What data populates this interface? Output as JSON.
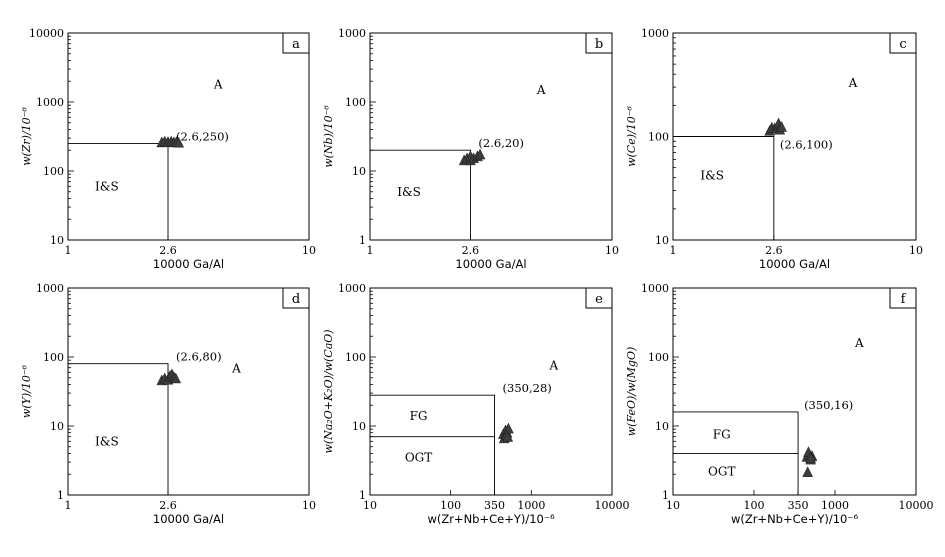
{
  "chart_data": [
    {
      "type": "scatter",
      "panel": "a",
      "xlabel": "10000 Ga/Al",
      "ylabel": "w(Zr)/10⁻⁶",
      "xscale": "log",
      "yscale": "log",
      "xlim": [
        1,
        10
      ],
      "ylim": [
        10,
        10000
      ],
      "xticks": [
        "1",
        "2.6",
        "10"
      ],
      "yticks": [
        "10",
        "100",
        "1000",
        "10000"
      ],
      "boundary": {
        "x": 2.6,
        "y": 250
      },
      "annotation": "(2.6,250)",
      "fields": [
        {
          "label": "A",
          "x": 4.2,
          "y": 1800
        },
        {
          "label": "I&S",
          "x": 1.45,
          "y": 60
        }
      ],
      "points": [
        [
          2.45,
          255
        ],
        [
          2.52,
          262
        ],
        [
          2.6,
          258
        ],
        [
          2.68,
          262
        ],
        [
          2.75,
          255
        ],
        [
          2.82,
          258
        ],
        [
          2.88,
          252
        ]
      ]
    },
    {
      "type": "scatter",
      "panel": "b",
      "xlabel": "10000 Ga/Al",
      "ylabel": "w(Nb)/10⁻⁶",
      "xscale": "log",
      "yscale": "log",
      "xlim": [
        1,
        10
      ],
      "ylim": [
        1,
        1000
      ],
      "xticks": [
        "1",
        "2.6",
        "10"
      ],
      "yticks": [
        "1",
        "10",
        "100",
        "1000"
      ],
      "boundary": {
        "x": 2.6,
        "y": 20
      },
      "annotation": "(2.6,20)",
      "fields": [
        {
          "label": "A",
          "x": 5.1,
          "y": 150
        },
        {
          "label": "I&S",
          "x": 1.45,
          "y": 5
        }
      ],
      "points": [
        [
          2.45,
          14
        ],
        [
          2.52,
          15
        ],
        [
          2.6,
          14
        ],
        [
          2.6,
          16
        ],
        [
          2.68,
          15
        ],
        [
          2.78,
          16
        ],
        [
          2.85,
          17
        ]
      ]
    },
    {
      "type": "scatter",
      "panel": "c",
      "xlabel": "10000 Ga/Al",
      "ylabel": "w(Ce)/10⁻⁶",
      "xscale": "log",
      "yscale": "log",
      "xlim": [
        1,
        10
      ],
      "ylim": [
        10,
        1000
      ],
      "xticks": [
        "1",
        "2.6",
        "10"
      ],
      "yticks": [
        "10",
        "100",
        "1000"
      ],
      "boundary": {
        "x": 2.6,
        "y": 100
      },
      "annotation": "(2.6,100)",
      "fields": [
        {
          "label": "A",
          "x": 5.5,
          "y": 330
        },
        {
          "label": "I&S",
          "x": 1.45,
          "y": 42
        }
      ],
      "points": [
        [
          2.5,
          112
        ],
        [
          2.55,
          120
        ],
        [
          2.62,
          118
        ],
        [
          2.7,
          125
        ],
        [
          2.72,
          132
        ],
        [
          2.75,
          115
        ],
        [
          2.8,
          122
        ]
      ]
    },
    {
      "type": "scatter",
      "panel": "d",
      "xlabel": "10000 Ga/Al",
      "ylabel": "w(Y)/10⁻⁶",
      "xscale": "log",
      "yscale": "log",
      "xlim": [
        1,
        10
      ],
      "ylim": [
        1,
        1000
      ],
      "xticks": [
        "1",
        "2.6",
        "10"
      ],
      "yticks": [
        "1",
        "10",
        "100",
        "1000"
      ],
      "boundary": {
        "x": 2.6,
        "y": 80
      },
      "annotation": "(2.6,80)",
      "fields": [
        {
          "label": "A",
          "x": 5.0,
          "y": 68
        },
        {
          "label": "I&S",
          "x": 1.45,
          "y": 6
        }
      ],
      "points": [
        [
          2.45,
          45
        ],
        [
          2.52,
          48
        ],
        [
          2.6,
          46
        ],
        [
          2.65,
          52
        ],
        [
          2.7,
          55
        ],
        [
          2.75,
          50
        ],
        [
          2.8,
          48
        ]
      ]
    },
    {
      "type": "scatter",
      "panel": "e",
      "xlabel": "w(Zr+Nb+Ce+Y)/10⁻⁶",
      "ylabel": "w(Na₂O+K₂O)/w(CaO)",
      "xscale": "log",
      "yscale": "log",
      "xlim": [
        10,
        10000
      ],
      "ylim": [
        1,
        1000
      ],
      "xticks": [
        "10",
        "100",
        "350",
        "1000",
        "10000"
      ],
      "yticks": [
        "1",
        "10",
        "100",
        "1000"
      ],
      "boundary": {
        "x": 350,
        "y": 28
      },
      "inner_boundary": {
        "x": 350,
        "y": 7
      },
      "annotation": "(350,28)",
      "fields": [
        {
          "label": "A",
          "x": 1900,
          "y": 75
        },
        {
          "label": "FG",
          "x": 40,
          "y": 14
        },
        {
          "label": "OGT",
          "x": 40,
          "y": 3.5
        }
      ],
      "points": [
        [
          450,
          7.5
        ],
        [
          480,
          8.5
        ],
        [
          500,
          7.8
        ],
        [
          520,
          9
        ],
        [
          460,
          6.5
        ],
        [
          490,
          7.2
        ],
        [
          510,
          6.8
        ]
      ]
    },
    {
      "type": "scatter",
      "panel": "f",
      "xlabel": "w(Zr+Nb+Ce+Y)/10⁻⁶",
      "ylabel": "w(FeO)/w(MgO)",
      "xscale": "log",
      "yscale": "log",
      "xlim": [
        10,
        10000
      ],
      "ylim": [
        1,
        1000
      ],
      "xticks": [
        "10",
        "100",
        "350",
        "1000",
        "10000"
      ],
      "yticks": [
        "1",
        "10",
        "100",
        "1000"
      ],
      "boundary": {
        "x": 350,
        "y": 16
      },
      "inner_boundary": {
        "x": 350,
        "y": 4
      },
      "annotation": "(350,16)",
      "fields": [
        {
          "label": "A",
          "x": 2000,
          "y": 160
        },
        {
          "label": "FG",
          "x": 40,
          "y": 7.5
        },
        {
          "label": "OGT",
          "x": 40,
          "y": 2.2
        }
      ],
      "points": [
        [
          450,
          3.5
        ],
        [
          480,
          3.8
        ],
        [
          500,
          3.2
        ],
        [
          520,
          3.6
        ],
        [
          470,
          4.1
        ],
        [
          500,
          3.4
        ],
        [
          460,
          2.1
        ]
      ]
    }
  ]
}
